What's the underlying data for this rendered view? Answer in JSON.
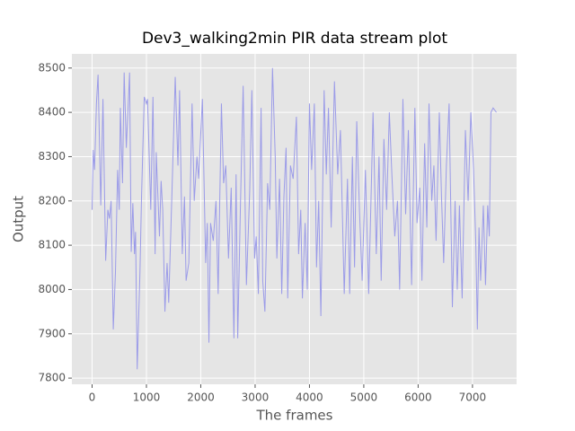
{
  "chart_data": {
    "type": "line",
    "title": "Dev3_walking2min PIR data stream plot",
    "xlabel": "The frames",
    "ylabel": "Output",
    "x": [
      0,
      20,
      45,
      80,
      110,
      160,
      200,
      250,
      290,
      320,
      350,
      390,
      430,
      470,
      500,
      520,
      560,
      590,
      630,
      690,
      720,
      750,
      780,
      800,
      830,
      880,
      910,
      960,
      1000,
      1020,
      1080,
      1120,
      1160,
      1180,
      1240,
      1270,
      1300,
      1340,
      1380,
      1410,
      1470,
      1530,
      1580,
      1610,
      1660,
      1700,
      1730,
      1780,
      1840,
      1880,
      1930,
      1960,
      2030,
      2090,
      2120,
      2150,
      2180,
      2230,
      2280,
      2320,
      2380,
      2420,
      2460,
      2510,
      2560,
      2610,
      2650,
      2680,
      2730,
      2780,
      2840,
      2900,
      2940,
      2990,
      3020,
      3060,
      3110,
      3140,
      3180,
      3230,
      3270,
      3320,
      3370,
      3400,
      3450,
      3490,
      3530,
      3570,
      3600,
      3650,
      3700,
      3760,
      3800,
      3840,
      3870,
      3920,
      3960,
      4000,
      4040,
      4090,
      4130,
      4170,
      4210,
      4270,
      4310,
      4350,
      4400,
      4460,
      4520,
      4570,
      4640,
      4700,
      4740,
      4790,
      4830,
      4870,
      4920,
      4970,
      5030,
      5090,
      5140,
      5170,
      5230,
      5280,
      5320,
      5370,
      5420,
      5470,
      5520,
      5570,
      5620,
      5660,
      5720,
      5770,
      5820,
      5880,
      5940,
      5980,
      6030,
      6070,
      6120,
      6160,
      6200,
      6250,
      6290,
      6330,
      6390,
      6430,
      6470,
      6520,
      6570,
      6630,
      6680,
      6720,
      6760,
      6810,
      6870,
      6920,
      6970,
      7020,
      7060,
      7090,
      7120,
      7150,
      7200,
      7240,
      7280,
      7310,
      7340,
      7380,
      7440
    ],
    "series": [
      {
        "color": "#9b9be8",
        "values": [
          8180,
          8315,
          8270,
          8420,
          8485,
          8190,
          8430,
          8065,
          8180,
          8160,
          8200,
          7910,
          8040,
          8270,
          8180,
          8410,
          8240,
          8490,
          8320,
          8490,
          8085,
          8195,
          8080,
          8130,
          7820,
          8035,
          8210,
          8435,
          8420,
          8430,
          8180,
          8435,
          8080,
          8310,
          8120,
          8245,
          8180,
          7950,
          8060,
          7970,
          8220,
          8480,
          8280,
          8450,
          8080,
          8210,
          8020,
          8060,
          8420,
          8200,
          8300,
          8250,
          8430,
          8060,
          8150,
          7880,
          8150,
          8110,
          8200,
          7990,
          8420,
          8240,
          8280,
          8070,
          8230,
          7890,
          8260,
          7890,
          8190,
          8460,
          8010,
          8220,
          8450,
          8070,
          8120,
          7990,
          8410,
          8020,
          7950,
          8240,
          8180,
          8500,
          8300,
          8070,
          8250,
          7990,
          8210,
          8320,
          7980,
          8280,
          8250,
          8390,
          8080,
          8180,
          7980,
          8150,
          8000,
          8420,
          8270,
          8420,
          8050,
          8200,
          7940,
          8450,
          8260,
          8410,
          8140,
          8470,
          8260,
          8360,
          7990,
          8250,
          7990,
          8300,
          8050,
          8380,
          8180,
          8020,
          8270,
          7990,
          8240,
          8400,
          8080,
          8300,
          8020,
          8340,
          8180,
          8400,
          8250,
          8120,
          8200,
          8000,
          8430,
          8170,
          8360,
          8010,
          8410,
          8150,
          8230,
          8020,
          8330,
          8140,
          8420,
          8200,
          8280,
          8110,
          8400,
          8210,
          8060,
          8280,
          8420,
          7960,
          8200,
          8000,
          8190,
          7980,
          8360,
          8200,
          8400,
          8270,
          8110,
          7910,
          8140,
          8020,
          8190,
          8010,
          8190,
          8120,
          8400,
          8410,
          8400
        ]
      }
    ],
    "xlim": [
      -372,
      7812
    ],
    "ylim": [
      7786,
      8532
    ],
    "xticks": [
      0,
      1000,
      2000,
      3000,
      4000,
      5000,
      6000,
      7000
    ],
    "yticks": [
      7800,
      7900,
      8000,
      8100,
      8200,
      8300,
      8400,
      8500
    ],
    "grid": true
  }
}
